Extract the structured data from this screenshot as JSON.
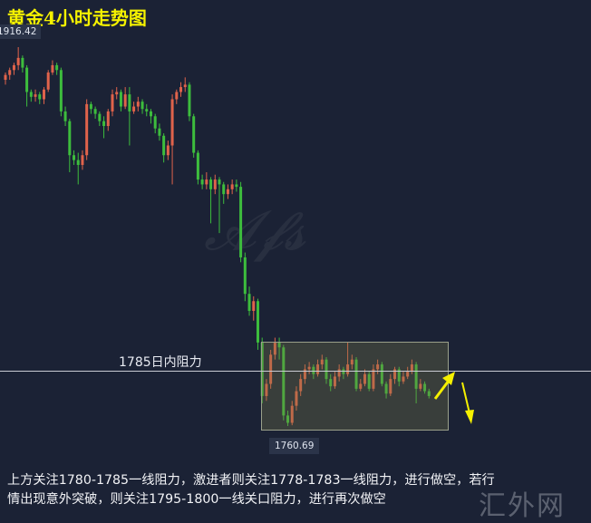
{
  "title": "黄金4小时走势图",
  "high_tag": "1916.42",
  "low_tag": "1760.69",
  "resistance_label": "1785日内阻力",
  "description_lines": [
    "上方关注1780-1785一线阻力，激进者则关注1778-1783一线阻力，进行做空，若行",
    "情出现意外突破，则关注1795-1800一线关口阻力，进行再次做空"
  ],
  "watermark": "汇外网",
  "colors": {
    "background": "#1b2235",
    "up": "#e0634b",
    "down": "#3dbd3d",
    "title": "#f5f200",
    "arrow": "#f5f000"
  },
  "chart_data": {
    "type": "candlestick",
    "title": "黄金4小时走势图",
    "resistance_level": 1785,
    "annotations": [
      "1916.42",
      "1760.69",
      "1785日内阻力"
    ],
    "ohlc": [
      [
        1903,
        1906,
        1901,
        1905
      ],
      [
        1905,
        1908,
        1903,
        1907
      ],
      [
        1907,
        1910,
        1905,
        1909
      ],
      [
        1909,
        1916.42,
        1907,
        1912
      ],
      [
        1912,
        1913,
        1906,
        1908
      ],
      [
        1908,
        1909,
        1892,
        1898
      ],
      [
        1898,
        1899,
        1894,
        1896
      ],
      [
        1896,
        1899,
        1894,
        1897
      ],
      [
        1897,
        1898,
        1893,
        1895
      ],
      [
        1895,
        1900,
        1893,
        1899
      ],
      [
        1899,
        1907,
        1898,
        1906
      ],
      [
        1906,
        1911,
        1905,
        1909
      ],
      [
        1909,
        1910,
        1905,
        1907
      ],
      [
        1907,
        1908,
        1888,
        1890
      ],
      [
        1890,
        1892,
        1884,
        1886
      ],
      [
        1886,
        1887,
        1865,
        1872
      ],
      [
        1872,
        1874,
        1868,
        1870
      ],
      [
        1870,
        1873,
        1860,
        1868
      ],
      [
        1868,
        1874,
        1866,
        1872
      ],
      [
        1872,
        1895,
        1870,
        1893
      ],
      [
        1893,
        1894,
        1889,
        1891
      ],
      [
        1891,
        1892,
        1887,
        1889
      ],
      [
        1889,
        1890,
        1884,
        1886
      ],
      [
        1886,
        1888,
        1879,
        1884
      ],
      [
        1884,
        1891,
        1882,
        1890
      ],
      [
        1890,
        1899,
        1888,
        1897
      ],
      [
        1897,
        1900,
        1895,
        1898
      ],
      [
        1898,
        1899,
        1890,
        1892
      ],
      [
        1892,
        1900,
        1891,
        1897
      ],
      [
        1897,
        1900,
        1876,
        1890
      ],
      [
        1890,
        1894,
        1889,
        1892
      ],
      [
        1892,
        1896,
        1890,
        1894
      ],
      [
        1894,
        1895,
        1889,
        1891
      ],
      [
        1891,
        1893,
        1888,
        1890
      ],
      [
        1890,
        1891,
        1885,
        1888
      ],
      [
        1888,
        1889,
        1881,
        1883
      ],
      [
        1883,
        1885,
        1878,
        1880
      ],
      [
        1880,
        1881,
        1869,
        1872
      ],
      [
        1872,
        1878,
        1870,
        1876
      ],
      [
        1876,
        1897,
        1860,
        1895
      ],
      [
        1895,
        1899,
        1893,
        1898
      ],
      [
        1898,
        1902,
        1896,
        1900
      ],
      [
        1900,
        1904,
        1898,
        1901
      ],
      [
        1901,
        1902,
        1886,
        1888
      ],
      [
        1888,
        1889,
        1871,
        1873
      ],
      [
        1873,
        1874,
        1860,
        1862
      ],
      [
        1862,
        1864,
        1858,
        1860
      ],
      [
        1860,
        1865,
        1858,
        1862
      ],
      [
        1862,
        1863,
        1844,
        1858
      ],
      [
        1858,
        1864,
        1856,
        1862
      ],
      [
        1862,
        1863,
        1840,
        1860
      ],
      [
        1860,
        1861,
        1852,
        1856
      ],
      [
        1856,
        1860,
        1854,
        1858
      ],
      [
        1858,
        1862,
        1856,
        1860
      ],
      [
        1860,
        1862,
        1857,
        1859
      ],
      [
        1859,
        1861,
        1828,
        1830
      ],
      [
        1830,
        1832,
        1812,
        1815
      ],
      [
        1815,
        1818,
        1806,
        1808
      ],
      [
        1808,
        1814,
        1804,
        1812
      ],
      [
        1812,
        1813,
        1792,
        1795
      ],
      [
        1795,
        1797,
        1770,
        1773
      ],
      [
        1773,
        1780,
        1771,
        1778
      ],
      [
        1778,
        1792,
        1776,
        1790
      ],
      [
        1790,
        1797,
        1788,
        1795
      ],
      [
        1795,
        1797,
        1788,
        1793
      ],
      [
        1793,
        1794,
        1763,
        1765
      ],
      [
        1765,
        1767,
        1760.69,
        1762
      ],
      [
        1762,
        1771,
        1761,
        1769
      ],
      [
        1769,
        1777,
        1767,
        1775
      ],
      [
        1775,
        1782,
        1773,
        1780
      ],
      [
        1780,
        1786,
        1778,
        1784
      ],
      [
        1784,
        1787,
        1782,
        1785
      ],
      [
        1785,
        1786,
        1780,
        1782
      ],
      [
        1782,
        1788,
        1781,
        1786
      ],
      [
        1786,
        1790,
        1784,
        1788
      ],
      [
        1788,
        1789,
        1778,
        1780
      ],
      [
        1780,
        1782,
        1775,
        1777
      ],
      [
        1777,
        1783,
        1776,
        1781
      ],
      [
        1781,
        1786,
        1779,
        1784
      ],
      [
        1784,
        1785,
        1780,
        1782
      ],
      [
        1782,
        1795,
        1781,
        1786
      ],
      [
        1786,
        1790,
        1784,
        1788
      ],
      [
        1788,
        1789,
        1775,
        1776
      ],
      [
        1776,
        1780,
        1775,
        1778
      ],
      [
        1778,
        1784,
        1777,
        1782
      ],
      [
        1782,
        1783,
        1775,
        1776
      ],
      [
        1776,
        1786,
        1775,
        1784
      ],
      [
        1784,
        1788,
        1782,
        1786
      ],
      [
        1786,
        1787,
        1777,
        1778
      ],
      [
        1778,
        1779,
        1772,
        1774
      ],
      [
        1774,
        1782,
        1773,
        1780
      ],
      [
        1780,
        1785,
        1778,
        1784
      ],
      [
        1784,
        1785,
        1777,
        1779
      ],
      [
        1779,
        1783,
        1778,
        1781
      ],
      [
        1781,
        1785,
        1780,
        1783
      ],
      [
        1783,
        1788,
        1782,
        1786
      ],
      [
        1786,
        1787,
        1770,
        1776
      ],
      [
        1776,
        1780,
        1775,
        1778
      ],
      [
        1778,
        1779,
        1774,
        1775
      ],
      [
        1775,
        1776,
        1772,
        1773
      ]
    ]
  }
}
